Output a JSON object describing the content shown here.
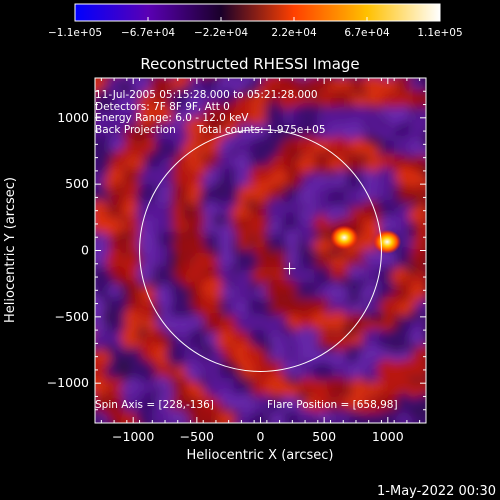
{
  "chart_data": {
    "type": "heatmap",
    "title": "Reconstructed RHESSI Image",
    "xlabel": "Heliocentric X (arcsec)",
    "ylabel": "Heliocentric Y (arcsec)",
    "xlim": [
      -1300,
      1300
    ],
    "ylim": [
      -1300,
      1300
    ],
    "xticks": [
      -1000,
      -500,
      0,
      500,
      1000
    ],
    "yticks": [
      -1000,
      -500,
      0,
      500,
      1000
    ],
    "xtick_labels": [
      "−1000",
      "−500",
      "0",
      "500",
      "1000"
    ],
    "ytick_labels": [
      "−1000",
      "−500",
      "0",
      "500",
      "1000"
    ],
    "colorbar": {
      "min": -110000,
      "max": 110000,
      "tick_labels": [
        "−1.1e+05",
        "−6.7e+04",
        "−2.2e+04",
        "2.2e+04",
        "6.7e+04",
        "1.1e+05"
      ],
      "stops": [
        "#0000ff",
        "#5a00b4",
        "#1a002a",
        "#ff4000",
        "#ffc000",
        "#ffffff"
      ]
    },
    "annotations": {
      "time_range": "11-Jul-2005 05:15:28.000 to 05:21:28.000",
      "detectors": "Detectors: 7F 8F 9F, Att 0",
      "energy": "Energy Range: 6.0 - 12.0 keV",
      "method": "Back Projection",
      "counts": "Total counts: 1.975e+05",
      "spin_axis": "Spin Axis = [228,-136]",
      "flare_position": "Flare Position = [658,98]"
    },
    "solar_limb": {
      "center_x": 0,
      "center_y": 0,
      "radius_arcsec": 950
    },
    "spin_axis_marker": {
      "x": 228,
      "y": -136
    },
    "sources": [
      {
        "x": 658,
        "y": 98,
        "value": 110000
      },
      {
        "x": 995,
        "y": 65,
        "value": 100000
      }
    ]
  },
  "footer": {
    "date": "1-May-2022 00:30"
  }
}
